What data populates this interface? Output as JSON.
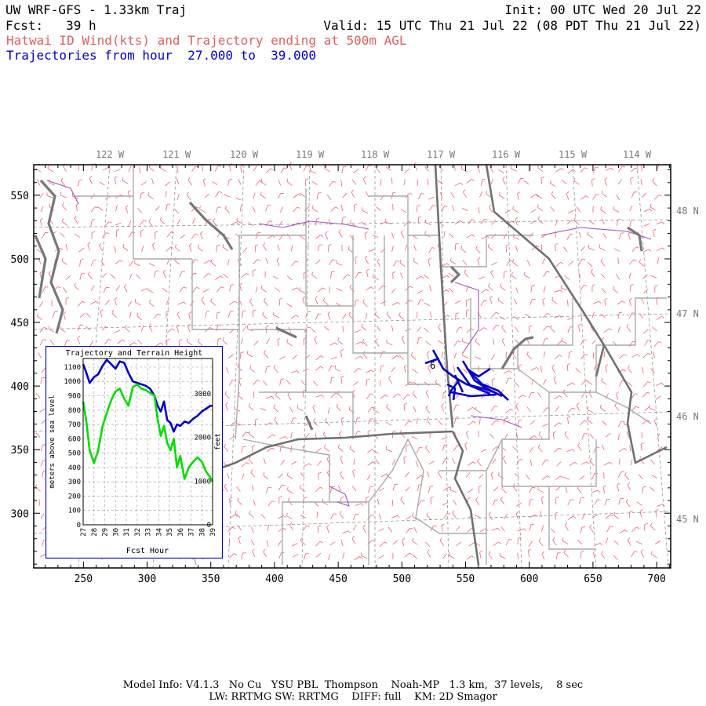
{
  "header": {
    "title": "UW WRF-GFS - 1.33km Traj",
    "init": "Init: 00 UTC Wed 20 Jul 22",
    "fcst": "Fcst:   39 h",
    "valid": "Valid: 15 UTC Thu 21 Jul 22 (08 PDT Thu 21 Jul 22)",
    "field": "Hatwai ID Wind(kts) and Trajectory ending at 500m AGL",
    "traj_range": "Trajectories from hour  27.000 to  39.000"
  },
  "map": {
    "lon_labels": [
      "122 W",
      "121 W",
      "120 W",
      "119 W",
      "118 W",
      "117 W",
      "116 W",
      "115 W",
      "114 W"
    ],
    "lat_labels": [
      "48 N",
      "47 N",
      "46 N",
      "45 N"
    ],
    "x_ticks": [
      250,
      300,
      350,
      400,
      450,
      500,
      550,
      600,
      650,
      700
    ],
    "y_ticks": [
      300,
      350,
      400,
      450,
      500,
      550
    ],
    "x_range": [
      211,
      711
    ],
    "y_range": [
      257,
      574
    ],
    "traj_marker": "6",
    "colors": {
      "barb": "#f06070",
      "state": "#707070",
      "county": "#aaaaaa",
      "river": "#a050c0",
      "traj": "#0000cc"
    }
  },
  "inset": {
    "title": "Trajectory and Terrain Height",
    "ylabel_left": "meters above sea level",
    "ylabel_right": "feet",
    "xlabel": "Fcst Hour",
    "left_ticks": [
      "0",
      "100",
      "200",
      "300",
      "400",
      "500",
      "600",
      "700",
      "800",
      "900",
      "1000",
      "1100"
    ],
    "right_ticks": [
      "0",
      "1000",
      "2000",
      "3000"
    ],
    "x_ticks": [
      "27",
      "28",
      "29",
      "30",
      "31",
      "32",
      "33",
      "34",
      "35",
      "36",
      "37",
      "38",
      "39"
    ],
    "series": [
      {
        "color": "#0000cc",
        "hours": [
          27.0,
          27.3,
          27.6,
          28.0,
          28.4,
          28.8,
          29.2,
          29.6,
          30.0,
          30.4,
          30.8,
          31.2,
          31.6,
          32.0,
          32.4,
          32.8,
          33.2,
          33.6,
          33.9,
          34.2,
          34.5,
          34.8,
          35.1,
          35.4,
          35.7,
          36.0,
          36.4,
          36.8,
          37.2,
          37.6,
          38.0,
          38.4,
          38.8,
          39.0
        ],
        "values": [
          1120,
          1060,
          990,
          1030,
          1050,
          1110,
          1150,
          1120,
          1090,
          1140,
          1130,
          1060,
          1000,
          990,
          980,
          970,
          950,
          900,
          830,
          790,
          860,
          730,
          710,
          650,
          700,
          690,
          720,
          710,
          740,
          760,
          790,
          810,
          830,
          830
        ]
      },
      {
        "color": "#00dd00",
        "hours": [
          27.0,
          27.3,
          27.6,
          28.0,
          28.4,
          28.8,
          29.2,
          29.6,
          30.0,
          30.4,
          30.8,
          31.2,
          31.6,
          32.0,
          32.4,
          32.8,
          33.2,
          33.6,
          33.9,
          34.2,
          34.5,
          34.8,
          35.1,
          35.4,
          35.7,
          36.0,
          36.4,
          36.8,
          37.2,
          37.6,
          38.0,
          38.4,
          38.8,
          39.0
        ],
        "values": [
          860,
          720,
          520,
          430,
          520,
          690,
          780,
          870,
          930,
          950,
          880,
          830,
          960,
          980,
          950,
          940,
          920,
          900,
          740,
          620,
          690,
          570,
          520,
          600,
          400,
          480,
          320,
          400,
          440,
          470,
          440,
          370,
          330,
          300
        ]
      }
    ]
  },
  "footer": {
    "line1": "Model Info: V4.1.3   No Cu   YSU PBL  Thompson    Noah-MP   1.3 km,  37 levels,    8 sec",
    "line2": "LW: RRTMG SW: RRTMG    DIFF: full    KM: 2D Smagor"
  }
}
